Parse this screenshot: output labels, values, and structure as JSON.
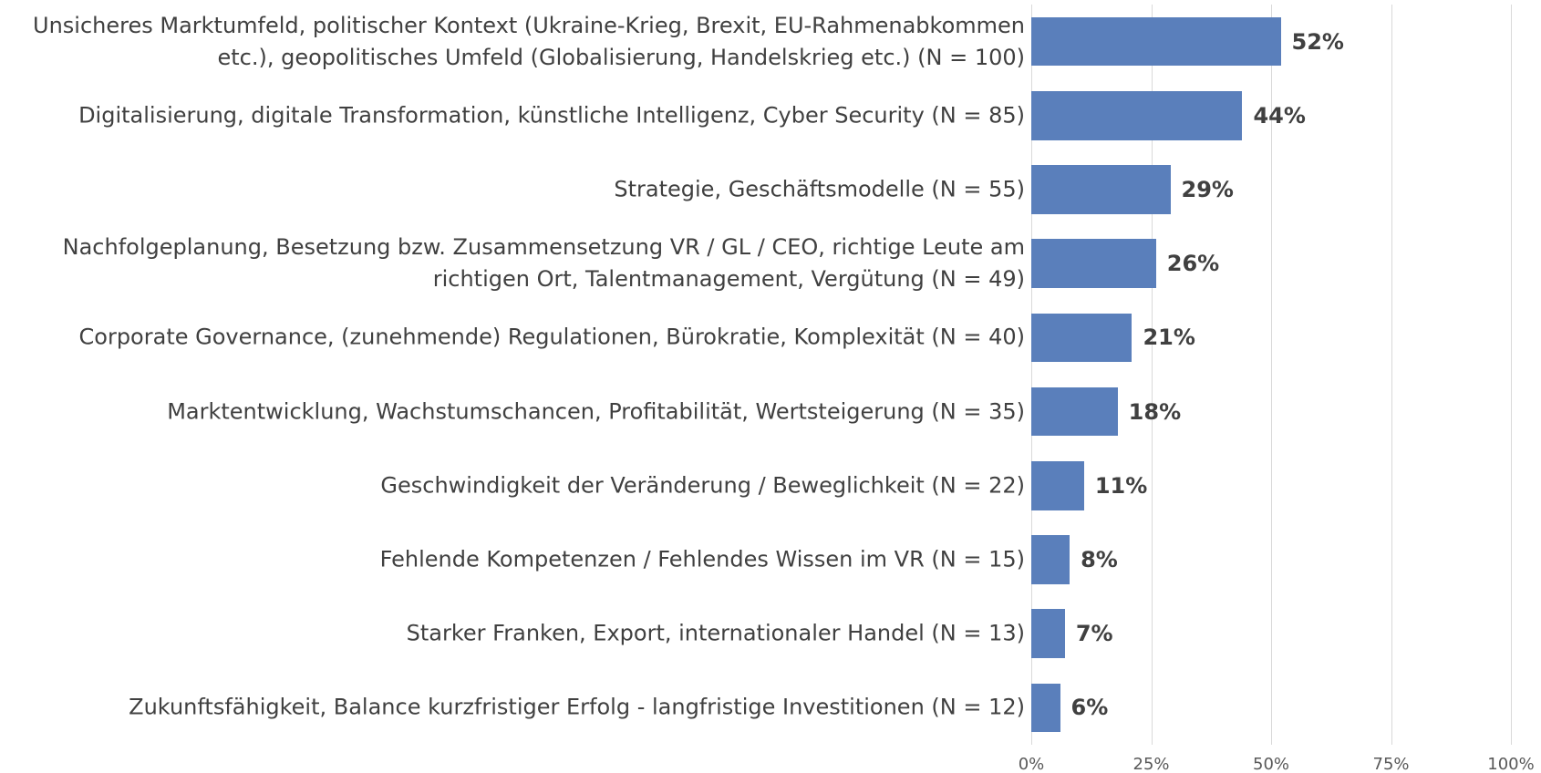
{
  "chart_data": {
    "type": "bar",
    "orientation": "horizontal",
    "categories": [
      "Unsicheres Marktumfeld, politischer Kontext (Ukraine-Krieg, Brexit, EU-Rahmenabkommen etc.), geopolitisches Umfeld (Globalisierung, Handelskrieg etc.) (N = 100)",
      "Digitalisierung, digitale Transformation, künstliche Intelligenz, Cyber Security (N = 85)",
      "Strategie, Geschäftsmodelle (N = 55)",
      "Nachfolgeplanung, Besetzung bzw. Zusammensetzung VR / GL / CEO, richtige Leute am richtigen Ort, Talentmanagement, Vergütung (N = 49)",
      "Corporate Governance, (zunehmende) Regulationen, Bürokratie, Komplexität (N = 40)",
      "Marktentwicklung, Wachstumschancen, Profitabilität, Wertsteigerung (N = 35)",
      "Geschwindigkeit der Veränderung / Beweglichkeit (N = 22)",
      "Fehlende Kompetenzen / Fehlendes Wissen im VR (N = 15)",
      "Starker Franken, Export, internationaler Handel (N = 13)",
      "Zukunftsfähigkeit, Balance kurzfristiger Erfolg - langfristige Investitionen (N = 12)"
    ],
    "values": [
      52,
      44,
      29,
      26,
      21,
      18,
      11,
      8,
      7,
      6
    ],
    "value_labels": [
      "52%",
      "44%",
      "29%",
      "26%",
      "21%",
      "18%",
      "11%",
      "8%",
      "7%",
      "6%"
    ],
    "color": "#5a7fbb",
    "xlim": [
      0,
      100
    ],
    "xticks": [
      {
        "value": 0,
        "label": "0%"
      },
      {
        "value": 25,
        "label": "25%"
      },
      {
        "value": 50,
        "label": "50%"
      },
      {
        "value": 75,
        "label": "75%"
      },
      {
        "value": 100,
        "label": "100%"
      }
    ],
    "grid": true
  }
}
